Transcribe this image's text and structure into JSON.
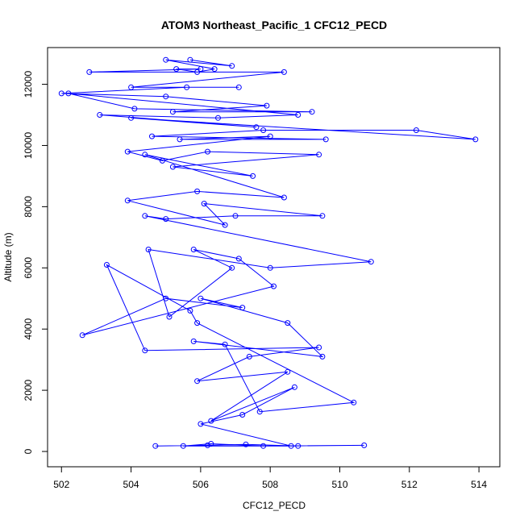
{
  "chart_data": {
    "type": "line",
    "title": "ATOM3 Northeast_Pacific_1 CFC12_PECD",
    "xlabel": "CFC12_PECD",
    "ylabel": "Altitude (m)",
    "xlim": [
      501.6,
      514.6
    ],
    "ylim": [
      -500,
      13200
    ],
    "xticks": [
      "502",
      "504",
      "506",
      "508",
      "510",
      "512",
      "514"
    ],
    "yticks": [
      "0",
      "2000",
      "4000",
      "6000",
      "8000",
      "10000",
      "12000"
    ],
    "series": [
      {
        "color": "#0000ff",
        "marker": "open-circle",
        "x": [
          504.7,
          506.2,
          507.3,
          508.8,
          505.5,
          506.3,
          507.8,
          510.7,
          508.6,
          506.0,
          507.2,
          508.7,
          506.3,
          508.5,
          505.9,
          507.4,
          509.4,
          504.4,
          503.3,
          505.7,
          505.9,
          510.4,
          507.7,
          506.7,
          505.8,
          509.5,
          508.5,
          506.0,
          507.2,
          505.0,
          502.6,
          508.1,
          507.1,
          505.8,
          506.9,
          505.1,
          504.5,
          508.0,
          510.9,
          504.4,
          505.0,
          507.0,
          509.5,
          506.1,
          506.7,
          503.9,
          505.9,
          508.4,
          504.4,
          507.5,
          505.2,
          509.4,
          506.2,
          504.9,
          503.9,
          508.0,
          505.4,
          509.6,
          504.6,
          507.8,
          512.2,
          513.9,
          504.0,
          507.6,
          503.1,
          506.5,
          508.8,
          502.2,
          504.1,
          509.2,
          505.2,
          507.9,
          505.0,
          502.0,
          505.6,
          507.1,
          504.0,
          508.4,
          502.8,
          506.0,
          505.3,
          505.9,
          506.4,
          505.0,
          506.9,
          505.7
        ]
      }
    ],
    "y": [
      180,
      200,
      230,
      180,
      180,
      250,
      180,
      200,
      180,
      900,
      1200,
      2100,
      1000,
      2600,
      2300,
      3100,
      3400,
      3300,
      6100,
      4600,
      4200,
      1600,
      1300,
      3500,
      3600,
      3100,
      4200,
      5000,
      4700,
      5000,
      3800,
      5400,
      6300,
      6600,
      6000,
      4400,
      6600,
      6000,
      6200,
      7700,
      7600,
      7700,
      7700,
      8100,
      7400,
      8200,
      8500,
      8300,
      9700,
      9000,
      9300,
      9700,
      9800,
      9500,
      9800,
      10300,
      10200,
      10200,
      10300,
      10500,
      10500,
      10200,
      10900,
      10600,
      11000,
      10900,
      11000,
      11700,
      11200,
      11100,
      11100,
      11300,
      11600,
      11700,
      11900,
      11900,
      11900,
      12400,
      12400,
      12500,
      12500,
      12400,
      12500,
      12800,
      12600,
      12800
    ]
  }
}
